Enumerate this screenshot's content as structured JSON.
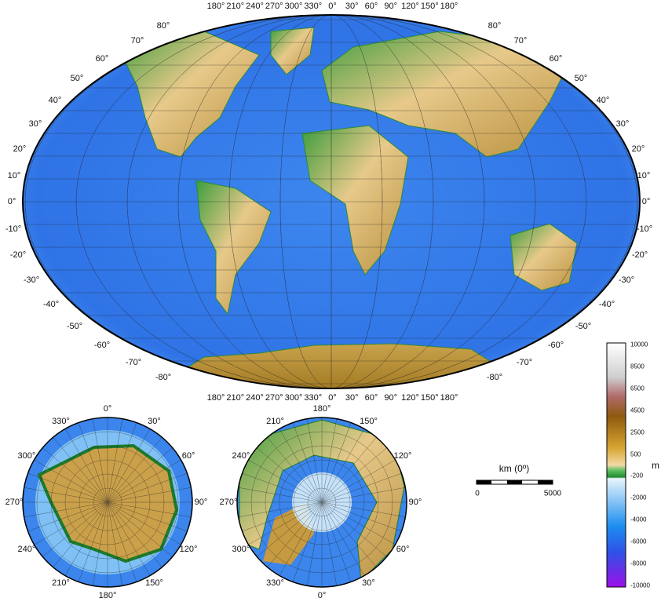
{
  "main_map": {
    "longitude_labels": [
      "180°",
      "210°",
      "240°",
      "270°",
      "300°",
      "330°",
      "0°",
      "30°",
      "60°",
      "90°",
      "120°",
      "150°",
      "180°"
    ],
    "latitude_labels": [
      "80°",
      "70°",
      "60°",
      "50°",
      "40°",
      "30°",
      "20°",
      "10°",
      "0°",
      "-10°",
      "-20°",
      "-30°",
      "-40°",
      "-50°",
      "-60°",
      "-70°",
      "-80°"
    ]
  },
  "south_polar_map": {
    "longitude_labels": [
      "0°",
      "30°",
      "60°",
      "90°",
      "120°",
      "150°",
      "180°",
      "210°",
      "240°",
      "270°",
      "300°",
      "330°"
    ]
  },
  "north_polar_map": {
    "longitude_labels": [
      "180°",
      "150°",
      "120°",
      "90°",
      "60°",
      "30°",
      "0°",
      "330°",
      "300°",
      "270°",
      "240°",
      "210°"
    ]
  },
  "scale_bar": {
    "title": "km (0º)",
    "min_label": "0",
    "max_label": "5000"
  },
  "colorbar": {
    "unit": "m",
    "tick_labels": [
      "10000",
      "8500",
      "6500",
      "4500",
      "2500",
      "500",
      "-200",
      "-2000",
      "-4000",
      "-6000",
      "-8000",
      "-10000"
    ],
    "colors": {
      "high": "#ffffff",
      "rock": "#a86060",
      "brown": "#9a6a10",
      "ochre": "#d4a530",
      "tan": "#f0d39a",
      "lowland": "#2f9a3a",
      "shelf": "#d8ecfa",
      "ocean": "#3f8cf0",
      "deep": "#2040e0",
      "trench": "#9a10e8"
    }
  }
}
